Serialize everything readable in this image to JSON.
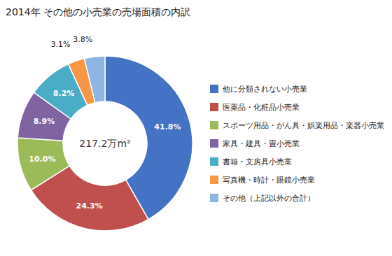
{
  "chart_data": {
    "type": "donut",
    "title": "2014年 その他の小売業の売場面積の内訳",
    "annotations": [
      "217.2万m²"
    ],
    "categories": [
      "他に分類されない小売業",
      "医薬品・化粧品小売業",
      "スポーツ用品・がん具・娯楽用品・楽器小売業",
      "家具・建具・畳小売業",
      "書籍・文房具小売業",
      "写真機・時計・眼鏡小売業",
      "その他（上記以外の合計）"
    ],
    "values": [
      41.8,
      24.3,
      10.0,
      8.9,
      8.2,
      3.1,
      3.8
    ],
    "value_labels": [
      "41.8%",
      "24.3%",
      "10.0%",
      "8.9%",
      "8.2%",
      "3.1%",
      "3.8%"
    ],
    "colors": [
      "#4472C4",
      "#C0504D",
      "#9BBB59",
      "#8064A2",
      "#4BACC6",
      "#F79646",
      "#8DB4E2"
    ],
    "data_labels": true,
    "legend": "right"
  }
}
